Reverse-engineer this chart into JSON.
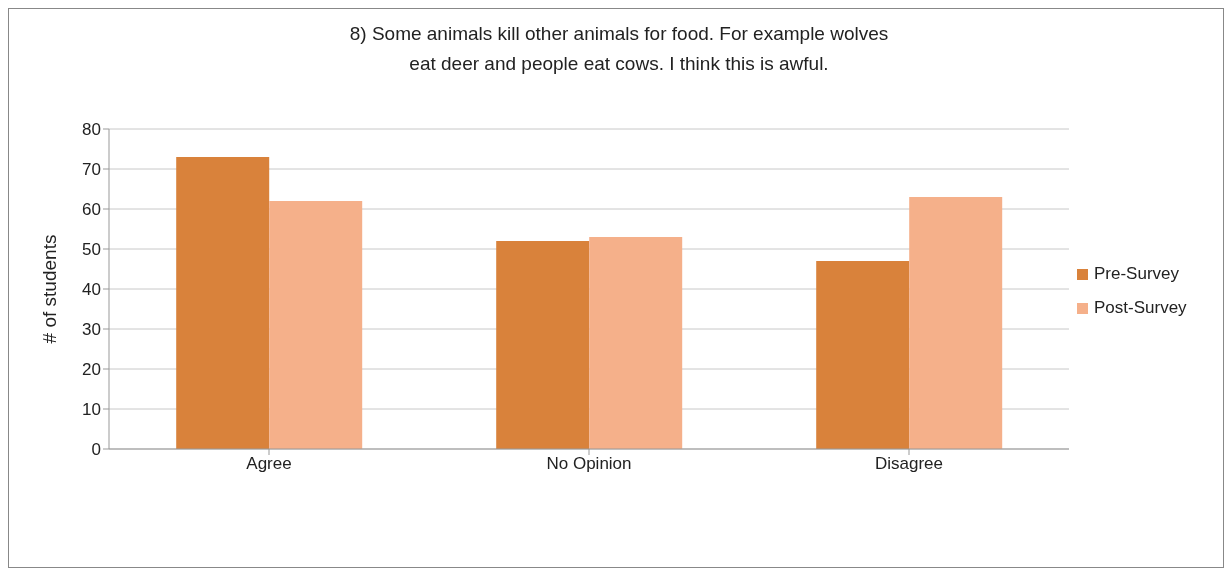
{
  "chart_data": {
    "type": "bar",
    "title": "8) Some animals kill other animals for food. For example wolves eat deer and people eat cows. I think this is awful.",
    "ylabel": "# of students",
    "categories": [
      "Agree",
      "No Opinion",
      "Disagree"
    ],
    "series": [
      {
        "name": "Pre-Survey",
        "color": "#d9823b",
        "values": [
          73,
          52,
          47
        ]
      },
      {
        "name": "Post-Survey",
        "color": "#f5b08a",
        "values": [
          62,
          53,
          63
        ]
      }
    ],
    "ylim": [
      0,
      80
    ],
    "yticks": [
      0,
      10,
      20,
      30,
      40,
      50,
      60,
      70,
      80
    ],
    "grid": "y",
    "legend": "right"
  }
}
